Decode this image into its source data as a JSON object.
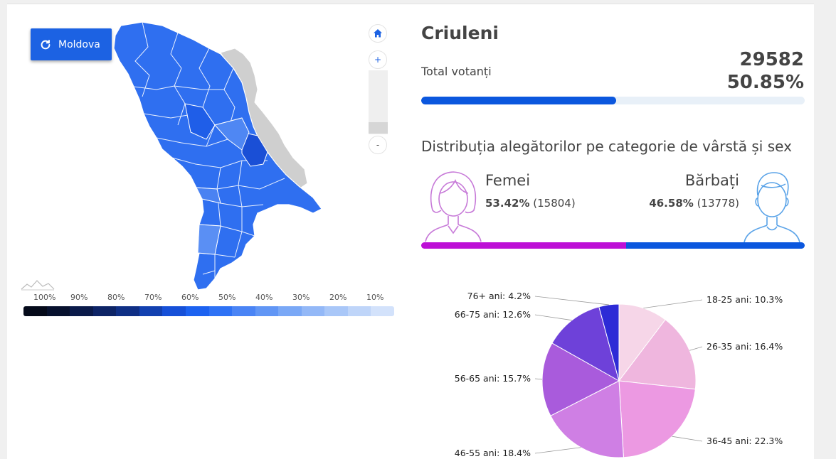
{
  "map": {
    "reset_button_label": "Moldova",
    "legend_labels": [
      "100%",
      "90%",
      "80%",
      "70%",
      "60%",
      "50%",
      "40%",
      "30%",
      "20%",
      "10%"
    ],
    "legend_colors": [
      "#050a1a",
      "#07112e",
      "#0a1a4a",
      "#0d2466",
      "#0f2f85",
      "#1240b0",
      "#1650d8",
      "#1c62f0",
      "#2e72f5",
      "#4a84f5",
      "#6196f5",
      "#7aa8f6",
      "#93b8f7",
      "#a9c7f8",
      "#bfd5f9",
      "#d3e2fb"
    ],
    "icons": {
      "reset": "refresh-icon",
      "home": "home-icon",
      "zoom_in": "plus-icon",
      "zoom_out": "minus-icon"
    },
    "zoom_in_label": "+",
    "zoom_out_label": "-"
  },
  "region": {
    "name": "Criuleni",
    "total_label": "Total votanți",
    "total_count": "29582",
    "total_percent": "50.85%",
    "turnout_value": 50.85
  },
  "distribution": {
    "title": "Distribuția alegătorilor pe categorie de vârstă și sex",
    "female": {
      "label": "Femei",
      "percent": "53.42%",
      "count": "(15804)",
      "value": 53.42,
      "color": "#bd10d6"
    },
    "male": {
      "label": "Bărbați",
      "percent": "46.58%",
      "count": "(13778)",
      "value": 46.58,
      "color": "#0b57de"
    }
  },
  "chart_data": {
    "type": "pie",
    "title": "",
    "slices": [
      {
        "label": "18-25 ani: 10.3%",
        "value": 10.3,
        "color": "#f6d6e8"
      },
      {
        "label": "26-35 ani: 16.4%",
        "value": 16.4,
        "color": "#efb6de"
      },
      {
        "label": "36-45 ani: 22.3%",
        "value": 22.3,
        "color": "#ec99e2"
      },
      {
        "label": "46-55 ani: 18.4%",
        "value": 18.4,
        "color": "#cf7fe4"
      },
      {
        "label": "56-65 ani: 15.7%",
        "value": 15.7,
        "color": "#a95bdc"
      },
      {
        "label": "66-75 ani: 12.6%",
        "value": 12.6,
        "color": "#6e41d9"
      },
      {
        "label": "76+ ani: 4.2%",
        "value": 4.2,
        "color": "#2d2bd6"
      }
    ]
  }
}
